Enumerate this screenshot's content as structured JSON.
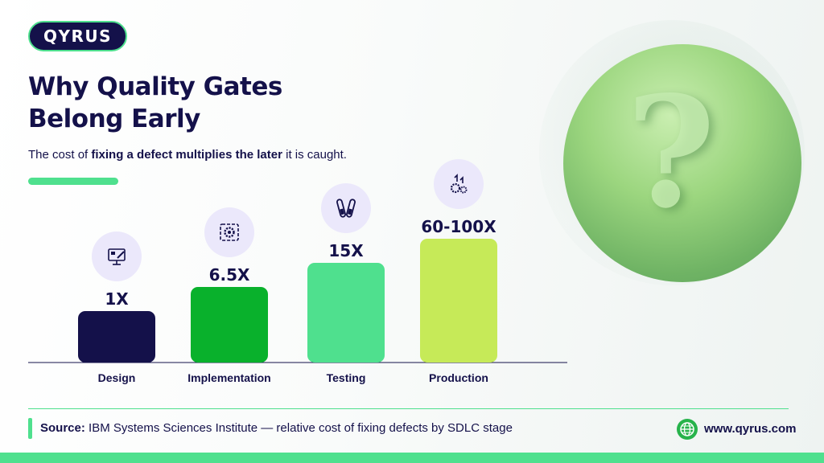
{
  "brand": {
    "logo_text": "QYRUS"
  },
  "header": {
    "title_line1": "Why Quality Gates",
    "title_line2": "Belong Early",
    "subtitle_pre": "The cost of ",
    "subtitle_bold": "fixing a defect multiplies the later",
    "subtitle_post": " it is caught."
  },
  "chart_data": {
    "type": "bar",
    "categories": [
      "Design",
      "Implementation",
      "Testing",
      "Production"
    ],
    "values": [
      1,
      6.5,
      15,
      80
    ],
    "data_labels": [
      "1X",
      "6.5X",
      "15X",
      "60-100X"
    ],
    "icons": [
      "design-monitor-icon",
      "implementation-gear-icon",
      "testing-tubes-icon",
      "production-gears-icon"
    ],
    "colors": [
      "#14114a",
      "#09b12c",
      "#4fe08e",
      "#c6ea58"
    ],
    "title": "",
    "xlabel": "",
    "ylabel": "",
    "grid": false,
    "legend": "none"
  },
  "footer": {
    "source_label": "Source:",
    "source_text": " IBM Systems Sciences Institute — relative cost of fixing defects by SDLC stage",
    "website": "www.qyrus.com",
    "globe_icon": "globe-icon"
  },
  "colors": {
    "navy": "#14114a",
    "accent": "#4fe08e"
  }
}
